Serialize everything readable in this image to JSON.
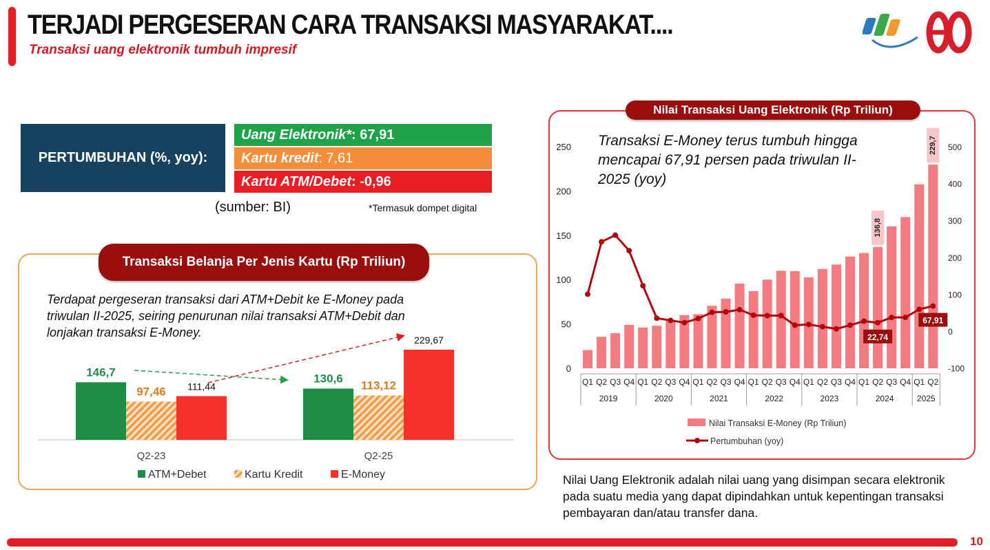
{
  "header": {
    "title": "TERJADI PERGESERAN CARA TRANSAKSI MASYARAKAT....",
    "subtitle": "Transaksi uang elektronik tumbuh impresif",
    "logo_text": "80",
    "page_number": "10"
  },
  "growth": {
    "label": "PERTUMBUHAN (%, yoy):",
    "items": [
      {
        "name": "Uang Elektronik*",
        "sep": ": ",
        "value": "67,91",
        "color": "#1ea34a"
      },
      {
        "name": "Kartu kredit",
        "sep": ": ",
        "value": "7,61",
        "color": "#f58e3a"
      },
      {
        "name": "Kartu ATM/Debet",
        "sep": ": ",
        "value": "-0,96",
        "color": "#ea1c24"
      }
    ],
    "source": "(sumber: BI)",
    "footnote": "*Termasuk dompet digital"
  },
  "left_panel": {
    "title": "Transaksi Belanja Per Jenis Kartu (Rp Triliun)",
    "note": "Terdapat pergeseran transaksi dari ATM+Debit ke E-Money pada triwulan II-2025, seiring penurunan nilai transaksi ATM+Debit dan lonjakan transaksi E-Money."
  },
  "right_panel": {
    "title": "Nilai Transaksi Uang Elektronik (Rp Triliun)",
    "note": "Transaksi E-Money terus tumbuh hingga mencapai 67,91 persen pada triwulan II-2025 (yoy)"
  },
  "bottom_note": "Nilai Uang Elektronik adalah nilai uang yang disimpan secara elektronik pada suatu media yang dapat dipindahkan untuk kepentingan transaksi pembayaran dan/atau transfer dana.",
  "colors": {
    "green": "#1e8e47",
    "orange": "#f39a45",
    "red": "#f4312b",
    "bar": "#f47b80",
    "line": "#b0080e",
    "accent": "#e31e24"
  },
  "chart_data": [
    {
      "type": "bar",
      "title": "Transaksi Belanja Per Jenis Kartu (Rp Triliun)",
      "categories": [
        "Q2-23",
        "Q2-25"
      ],
      "series": [
        {
          "name": "ATM+Debet",
          "values": [
            146.7,
            130.6
          ],
          "labels": [
            "146,7",
            "130,6"
          ]
        },
        {
          "name": "Kartu Kredit",
          "values": [
            97.46,
            113.12
          ],
          "labels": [
            "97,46",
            "113,12"
          ]
        },
        {
          "name": "E-Money",
          "values": [
            111.44,
            229.67
          ],
          "labels": [
            "111,44",
            "229,67"
          ]
        }
      ],
      "ylim": [
        0,
        260
      ]
    },
    {
      "type": "bar+line",
      "title": "Nilai Transaksi Uang Elektronik (Rp Triliun)",
      "quarters": [
        "Q1",
        "Q2",
        "Q3",
        "Q4",
        "Q1",
        "Q2",
        "Q3",
        "Q4",
        "Q1",
        "Q2",
        "Q3",
        "Q4",
        "Q1",
        "Q2",
        "Q3",
        "Q4",
        "Q1",
        "Q2",
        "Q3",
        "Q4",
        "Q1",
        "Q2",
        "Q3",
        "Q4",
        "Q1",
        "Q2"
      ],
      "years": [
        {
          "label": "2019",
          "quarters": 4
        },
        {
          "label": "2020",
          "quarters": 4
        },
        {
          "label": "2021",
          "quarters": 4
        },
        {
          "label": "2022",
          "quarters": 4
        },
        {
          "label": "2023",
          "quarters": 4
        },
        {
          "label": "2024",
          "quarters": 4
        },
        {
          "label": "2025",
          "quarters": 2
        }
      ],
      "series": [
        {
          "name": "Nilai Transaksi E-Money (Rp Triliun)",
          "axis": "left",
          "type": "bar",
          "values": [
            20.5,
            35.5,
            39.5,
            49,
            46,
            48,
            53.5,
            60,
            61,
            70.5,
            78.5,
            95.5,
            87,
            100,
            110,
            109.5,
            102.5,
            112,
            117,
            126,
            130,
            136.8,
            160,
            170.5,
            207.5,
            229.7
          ]
        },
        {
          "name": "Pertumbuhan (yoy)",
          "axis": "right",
          "type": "line",
          "values": [
            100,
            242,
            260,
            218,
            123,
            35,
            29,
            23,
            34,
            51,
            52,
            58,
            43,
            42,
            42,
            16,
            18,
            12,
            6,
            16,
            27,
            22.74,
            37,
            37,
            59,
            67.91
          ]
        }
      ],
      "left_axis": {
        "ticks": [
          0,
          50,
          100,
          150,
          200,
          250
        ],
        "ylim": [
          0,
          250
        ]
      },
      "right_axis": {
        "ticks": [
          -100,
          0,
          100,
          200,
          300,
          400,
          500
        ],
        "ylim": [
          -100,
          500
        ]
      },
      "callouts": [
        {
          "series": "bar",
          "index": 21,
          "label": "136,8"
        },
        {
          "series": "bar",
          "index": 25,
          "label": "229,7"
        },
        {
          "series": "line",
          "index": 21,
          "label": "22,74"
        },
        {
          "series": "line",
          "index": 25,
          "label": "67,91"
        }
      ]
    }
  ]
}
